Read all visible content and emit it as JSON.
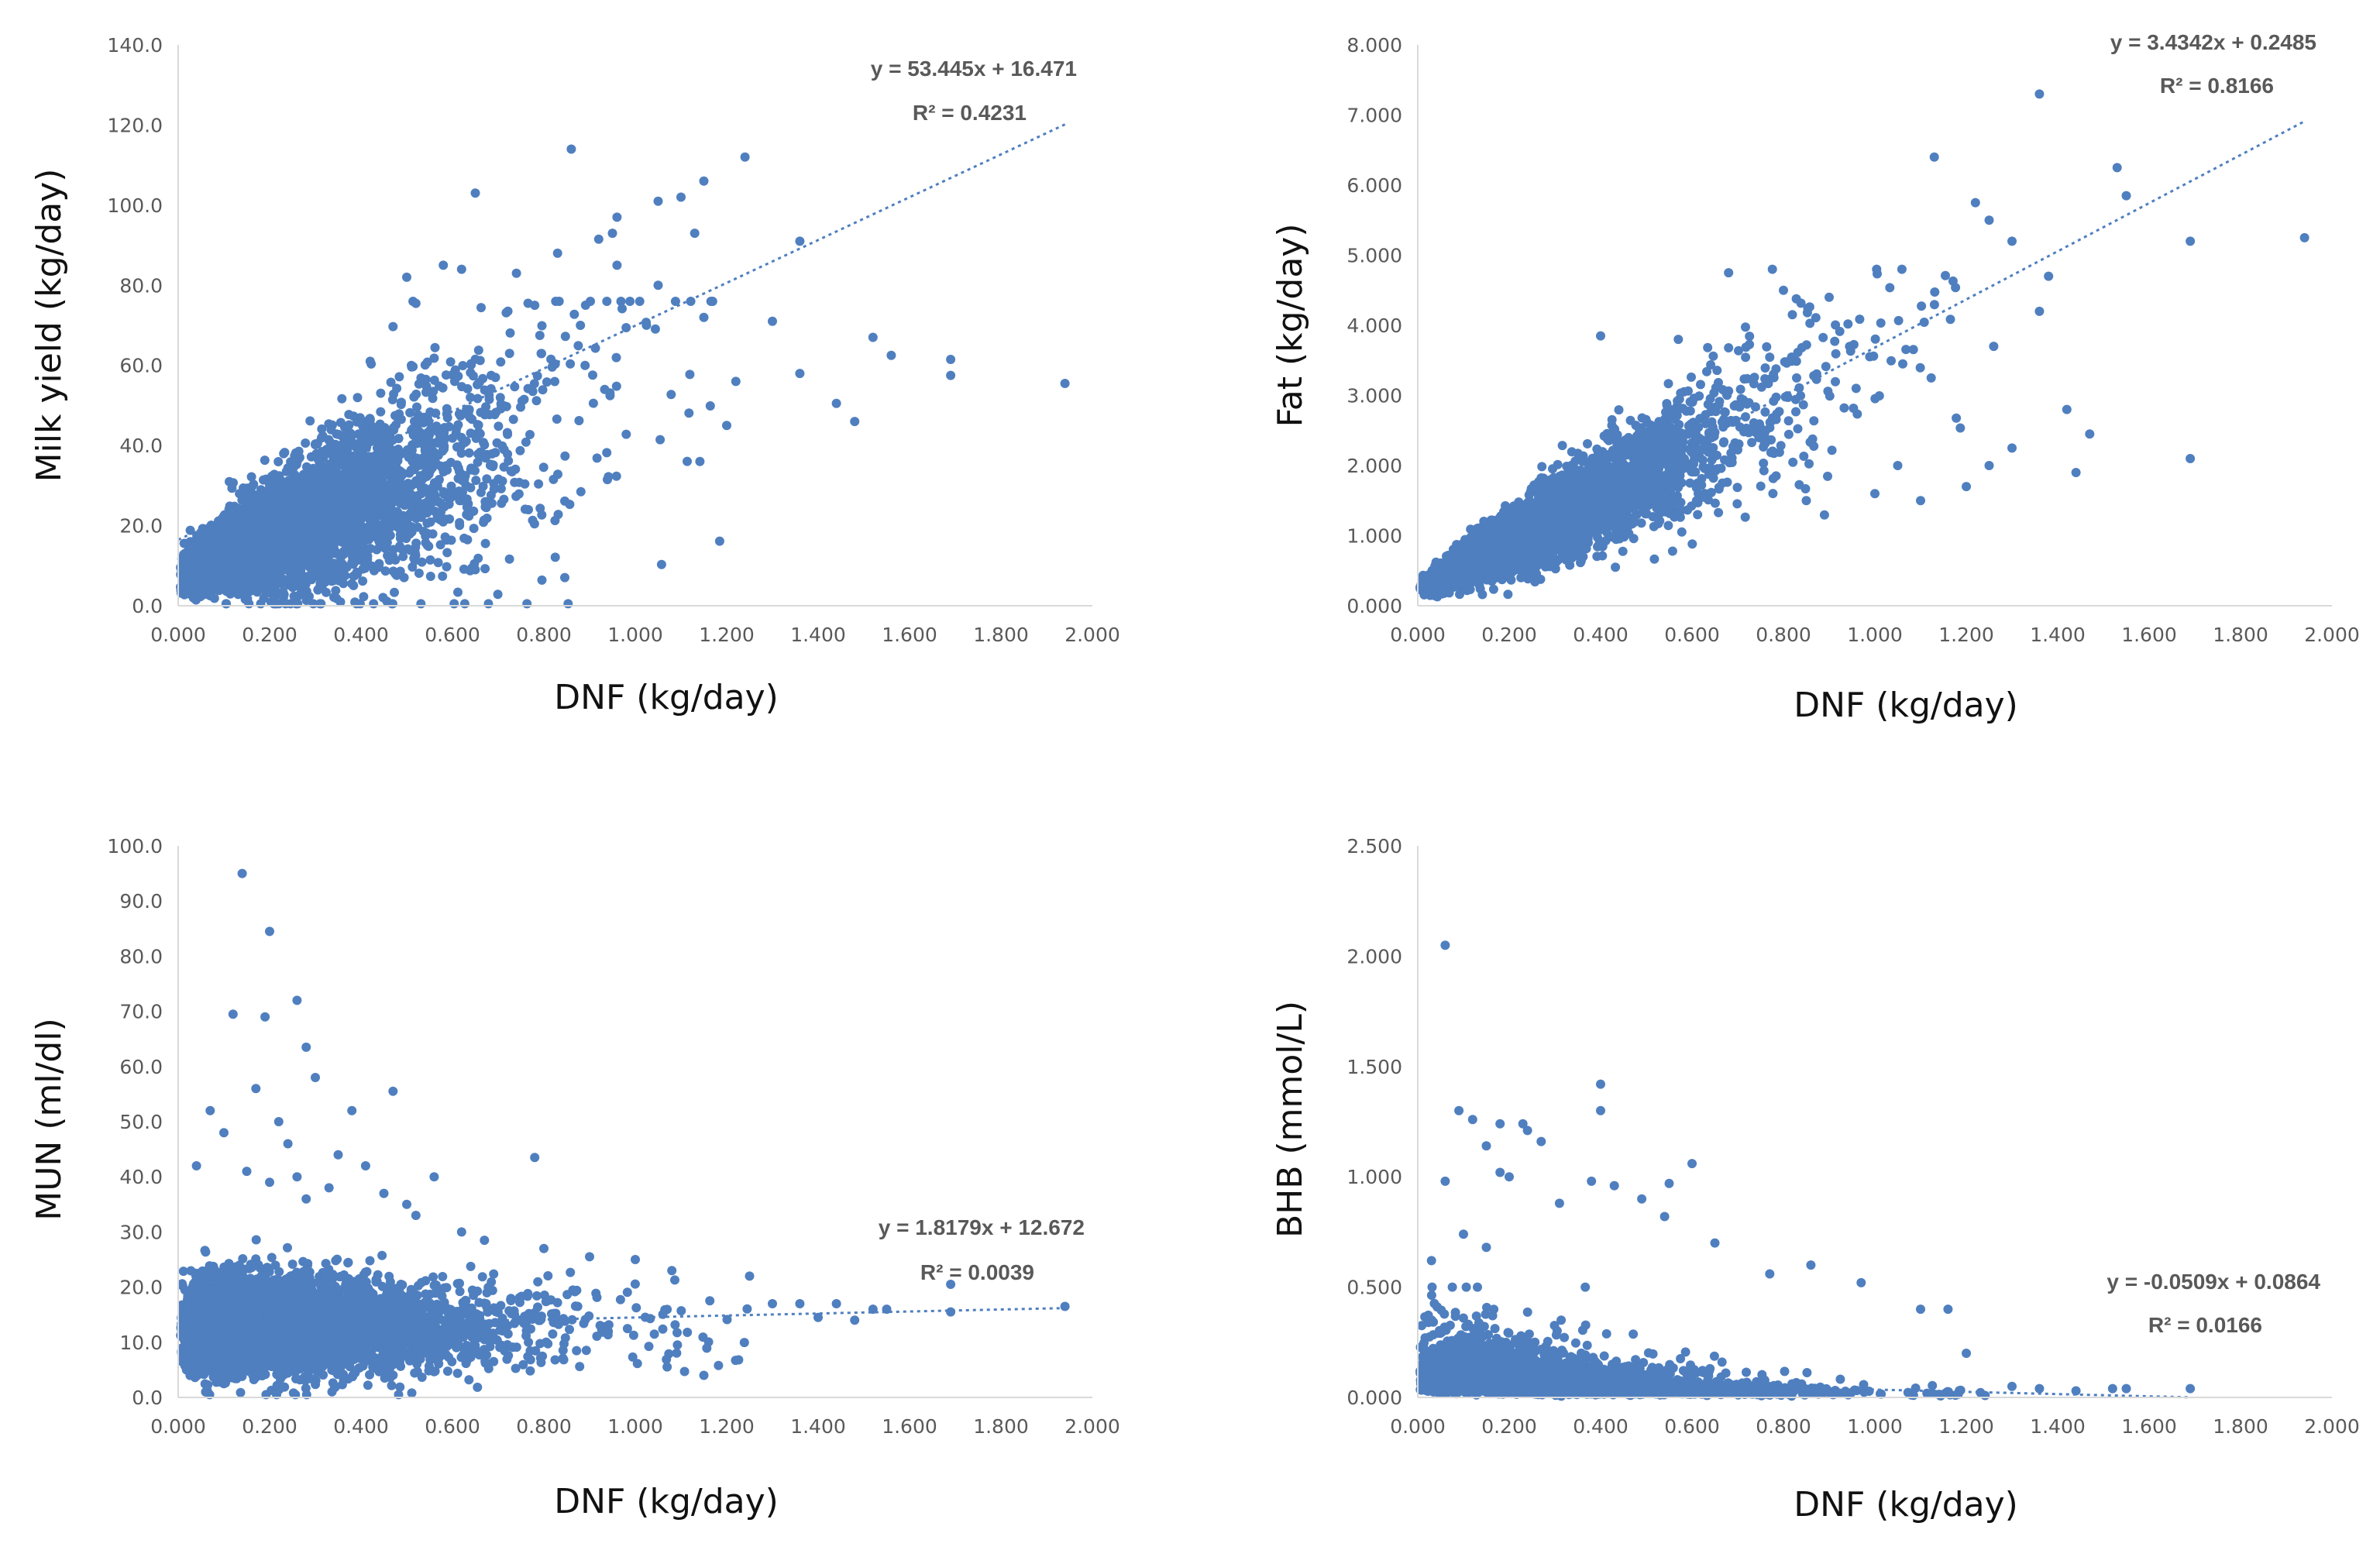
{
  "colors": {
    "marker": "#4f7fbf",
    "trend": "#4f7fbf",
    "tick_text": "#595959",
    "axis": "#d9d9d9"
  },
  "chart_data": [
    {
      "id": "milk",
      "type": "scatter",
      "xlabel": "DNF (kg/day)",
      "ylabel": "Milk yield (kg/day)",
      "xlim": [
        0,
        2.0
      ],
      "ylim": [
        0,
        140
      ],
      "xticks": [
        "0.000",
        "0.200",
        "0.400",
        "0.600",
        "0.800",
        "1.000",
        "1.200",
        "1.400",
        "1.600",
        "1.800",
        "2.000"
      ],
      "yticks": [
        "0.0",
        "20.0",
        "40.0",
        "60.0",
        "80.0",
        "100.0",
        "120.0",
        "140.0"
      ],
      "trendline": {
        "slope": 53.445,
        "intercept": 16.471,
        "x_range": [
          0,
          1.94
        ]
      },
      "equation": "y = 53.445x + 16.471",
      "r2": "R² = 0.4231",
      "cloud": {
        "seed": 11,
        "n": 5200,
        "xshape": 1.8,
        "xscale": 0.14,
        "xmax": 1.2,
        "base": 8,
        "slope": 46,
        "widen": 28,
        "noise": 0.28,
        "ymin": 0.5,
        "ymax": 76
      },
      "outliers": [
        [
          1.94,
          55.5
        ],
        [
          1.69,
          57.5
        ],
        [
          1.69,
          61.5
        ],
        [
          1.56,
          62.5
        ],
        [
          1.52,
          67
        ],
        [
          1.48,
          46
        ],
        [
          1.44,
          50.5
        ],
        [
          1.36,
          58
        ],
        [
          1.36,
          91
        ],
        [
          1.3,
          71
        ],
        [
          1.24,
          112
        ],
        [
          1.22,
          56
        ],
        [
          1.2,
          45
        ],
        [
          1.15,
          106
        ],
        [
          1.1,
          102
        ],
        [
          1.13,
          93
        ],
        [
          1.05,
          101
        ],
        [
          0.96,
          97
        ],
        [
          0.95,
          93
        ],
        [
          0.92,
          91.5
        ],
        [
          0.86,
          114
        ],
        [
          0.83,
          88
        ],
        [
          1.05,
          80
        ],
        [
          0.65,
          103
        ],
        [
          0.96,
          85
        ],
        [
          1.15,
          72
        ],
        [
          0.58,
          85
        ],
        [
          0.62,
          84
        ],
        [
          0.74,
          83
        ],
        [
          0.5,
          82
        ],
        [
          0.78,
          75
        ],
        [
          0.88,
          70
        ],
        [
          0.52,
          75.5
        ]
      ]
    },
    {
      "id": "fat",
      "type": "scatter",
      "xlabel": "DNF (kg/day)",
      "ylabel": "Fat (kg/day)",
      "xlim": [
        0,
        2.0
      ],
      "ylim": [
        0,
        8.0
      ],
      "xticks": [
        "0.000",
        "0.200",
        "0.400",
        "0.600",
        "0.800",
        "1.000",
        "1.200",
        "1.400",
        "1.600",
        "1.800",
        "2.000"
      ],
      "yticks": [
        "0.000",
        "1.000",
        "2.000",
        "3.000",
        "4.000",
        "5.000",
        "6.000",
        "7.000",
        "8.000"
      ],
      "trendline": {
        "slope": 3.4342,
        "intercept": 0.2485,
        "x_range": [
          0,
          1.94
        ]
      },
      "equation": "y = 3.4342x + 0.2485",
      "r2": "R² = 0.8166",
      "cloud": {
        "seed": 23,
        "n": 5200,
        "xshape": 1.8,
        "xscale": 0.14,
        "xmax": 1.2,
        "base": 0.25,
        "slope": 3.3,
        "widen": 0.0,
        "noise": 0.22,
        "ymin": 0.02,
        "ymax": 4.8
      },
      "outliers": [
        [
          1.36,
          7.3
        ],
        [
          1.53,
          6.25
        ],
        [
          1.55,
          5.85
        ],
        [
          1.13,
          6.4
        ],
        [
          1.22,
          5.75
        ],
        [
          1.25,
          5.5
        ],
        [
          1.3,
          5.2
        ],
        [
          1.69,
          5.2
        ],
        [
          1.94,
          5.25
        ],
        [
          1.38,
          4.7
        ],
        [
          1.36,
          4.2
        ],
        [
          1.42,
          2.8
        ],
        [
          1.47,
          2.45
        ],
        [
          1.44,
          1.9
        ],
        [
          1.69,
          2.1
        ],
        [
          1.3,
          2.25
        ],
        [
          1.2,
          1.7
        ],
        [
          1.25,
          2.0
        ],
        [
          1.05,
          2.0
        ],
        [
          1.1,
          1.5
        ],
        [
          0.68,
          4.75
        ],
        [
          0.8,
          4.5
        ],
        [
          0.9,
          4.4
        ],
        [
          0.57,
          3.8
        ],
        [
          1.26,
          3.7
        ],
        [
          0.4,
          3.85
        ],
        [
          1.0,
          1.6
        ],
        [
          0.85,
          1.5
        ]
      ]
    },
    {
      "id": "mun",
      "type": "scatter",
      "xlabel": "DNF (kg/day)",
      "ylabel": "MUN (ml/dl)",
      "xlim": [
        0,
        2.0
      ],
      "ylim": [
        0,
        100
      ],
      "xticks": [
        "0.000",
        "0.200",
        "0.400",
        "0.600",
        "0.800",
        "1.000",
        "1.200",
        "1.400",
        "1.600",
        "1.800",
        "2.000"
      ],
      "yticks": [
        "0.0",
        "10.0",
        "20.0",
        "30.0",
        "40.0",
        "50.0",
        "60.0",
        "70.0",
        "80.0",
        "90.0",
        "100.0"
      ],
      "trendline": {
        "slope": 1.8179,
        "intercept": 12.672,
        "x_range": [
          0,
          1.94
        ]
      },
      "equation": "y = 1.8179x + 12.672",
      "r2": "R² = 0.0039",
      "cloud": {
        "seed": 37,
        "n": 5200,
        "xshape": 1.8,
        "xscale": 0.14,
        "xmax": 1.25,
        "base": 13,
        "slope": 0,
        "widen": 0,
        "noise": 0.32,
        "ymin": 0.5,
        "ymax": 30
      },
      "outliers": [
        [
          0.14,
          95
        ],
        [
          0.2,
          84.5
        ],
        [
          0.26,
          72
        ],
        [
          0.19,
          69
        ],
        [
          0.12,
          69.5
        ],
        [
          0.28,
          63.5
        ],
        [
          0.17,
          56
        ],
        [
          0.3,
          58
        ],
        [
          0.38,
          52
        ],
        [
          0.47,
          55.5
        ],
        [
          0.07,
          52
        ],
        [
          0.1,
          48
        ],
        [
          0.22,
          50
        ],
        [
          0.24,
          46
        ],
        [
          0.35,
          44
        ],
        [
          0.41,
          42
        ],
        [
          0.78,
          43.5
        ],
        [
          0.56,
          40
        ],
        [
          0.04,
          42
        ],
        [
          0.33,
          38
        ],
        [
          0.15,
          41
        ],
        [
          0.2,
          39
        ],
        [
          0.26,
          40
        ],
        [
          0.28,
          36
        ],
        [
          0.45,
          37
        ],
        [
          0.5,
          35
        ],
        [
          0.52,
          33
        ],
        [
          0.62,
          30
        ],
        [
          0.67,
          28.5
        ],
        [
          0.8,
          27
        ],
        [
          0.9,
          25.5
        ],
        [
          1.0,
          25
        ],
        [
          1.08,
          23
        ],
        [
          1.25,
          22
        ],
        [
          1.3,
          17
        ],
        [
          1.36,
          17
        ],
        [
          1.4,
          14.5
        ],
        [
          1.44,
          17
        ],
        [
          1.48,
          14
        ],
        [
          1.52,
          16
        ],
        [
          1.55,
          16
        ],
        [
          1.69,
          15.5
        ],
        [
          1.69,
          20.5
        ],
        [
          1.94,
          16.5
        ],
        [
          1.15,
          4
        ],
        [
          0.06,
          1
        ],
        [
          0.1,
          2.5
        ]
      ]
    },
    {
      "id": "bhb",
      "type": "scatter",
      "xlabel": "DNF (kg/day)",
      "ylabel": "BHB (mmol/L)",
      "xlim": [
        0,
        2.0
      ],
      "ylim": [
        0,
        2.5
      ],
      "xticks": [
        "0.000",
        "0.200",
        "0.400",
        "0.600",
        "0.800",
        "1.000",
        "1.200",
        "1.400",
        "1.600",
        "1.800",
        "2.000"
      ],
      "yticks": [
        "0.000",
        "0.500",
        "1.000",
        "1.500",
        "2.000",
        "2.500"
      ],
      "trendline": {
        "slope": -0.0509,
        "intercept": 0.0864,
        "x_range": [
          0,
          1.69
        ]
      },
      "equation": "y = -0.0509x + 0.0864",
      "r2": "R² = 0.0166",
      "cloud": {
        "seed": 51,
        "n": 5200,
        "xshape": 1.8,
        "xscale": 0.14,
        "xmax": 1.25,
        "base": 0.1,
        "slope": -0.05,
        "widen": 0,
        "noise": 0.55,
        "ymin": 0.002,
        "ymax": 0.5,
        "decay": 1
      },
      "outliers": [
        [
          0.06,
          2.05
        ],
        [
          0.4,
          1.42
        ],
        [
          0.4,
          1.3
        ],
        [
          0.09,
          1.3
        ],
        [
          0.12,
          1.26
        ],
        [
          0.18,
          1.24
        ],
        [
          0.23,
          1.24
        ],
        [
          0.24,
          1.21
        ],
        [
          0.15,
          1.14
        ],
        [
          0.27,
          1.16
        ],
        [
          0.6,
          1.06
        ],
        [
          0.06,
          0.98
        ],
        [
          0.18,
          1.02
        ],
        [
          0.2,
          1.0
        ],
        [
          0.38,
          0.98
        ],
        [
          0.43,
          0.96
        ],
        [
          0.55,
          0.97
        ],
        [
          0.31,
          0.88
        ],
        [
          0.49,
          0.9
        ],
        [
          0.54,
          0.82
        ],
        [
          0.65,
          0.7
        ],
        [
          0.77,
          0.56
        ],
        [
          0.86,
          0.6
        ],
        [
          0.97,
          0.52
        ],
        [
          1.1,
          0.4
        ],
        [
          1.16,
          0.4
        ],
        [
          1.2,
          0.2
        ],
        [
          1.3,
          0.05
        ],
        [
          1.36,
          0.04
        ],
        [
          1.44,
          0.03
        ],
        [
          1.52,
          0.04
        ],
        [
          1.55,
          0.04
        ],
        [
          1.69,
          0.04
        ],
        [
          0.03,
          0.62
        ],
        [
          0.1,
          0.74
        ],
        [
          0.15,
          0.68
        ]
      ]
    }
  ]
}
